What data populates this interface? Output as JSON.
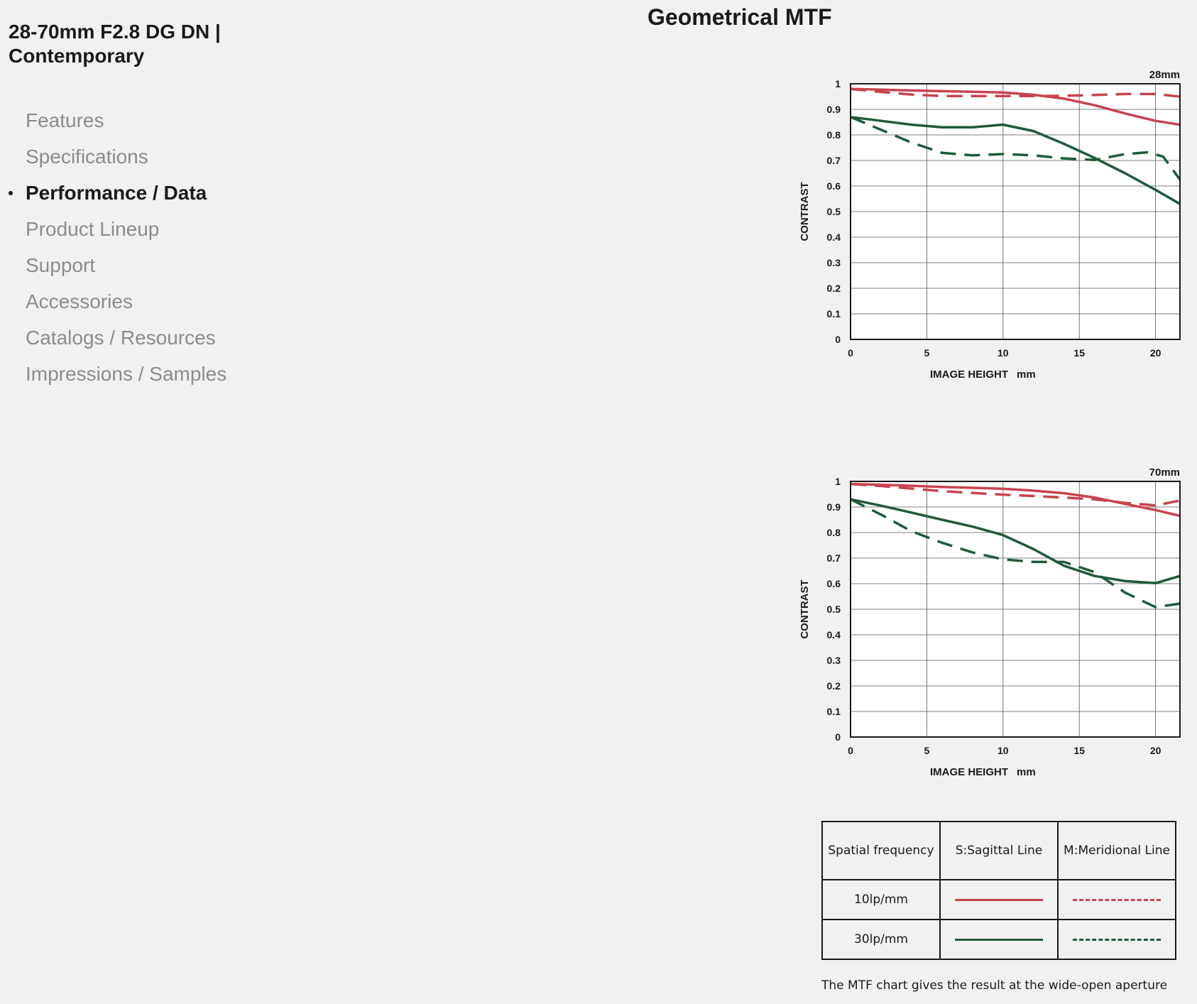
{
  "product": {
    "title_line1": "28-70mm F2.8 DG DN |",
    "title_line2": "Contemporary"
  },
  "nav": {
    "items": [
      {
        "label": "Features",
        "active": false
      },
      {
        "label": "Specifications",
        "active": false
      },
      {
        "label": "Performance / Data",
        "active": true
      },
      {
        "label": "Product Lineup",
        "active": false
      },
      {
        "label": "Support",
        "active": false
      },
      {
        "label": "Accessories",
        "active": false
      },
      {
        "label": "Catalogs / Resources",
        "active": false
      },
      {
        "label": "Impressions / Samples",
        "active": false
      }
    ]
  },
  "section": {
    "title": "Geometrical MTF"
  },
  "colors": {
    "lp10": "#c8434e",
    "lp30": "#1f5a3a",
    "background": "#f1f1f1",
    "text_active": "#1a1a1a",
    "text_muted": "#8c8c8c"
  },
  "chart_data": [
    {
      "type": "line",
      "title": "28mm",
      "xlabel": "IMAGE HEIGHT",
      "xunit": "mm",
      "ylabel": "CONTRAST",
      "xlim": [
        0,
        21.6
      ],
      "ylim": [
        0,
        1
      ],
      "xticks": [
        "0",
        "5",
        "10",
        "15",
        "20"
      ],
      "yticks": [
        "0",
        "0.1",
        "0.2",
        "0.3",
        "0.4",
        "0.5",
        "0.6",
        "0.7",
        "0.8",
        "0.9",
        "1"
      ],
      "grid": true,
      "series": [
        {
          "name": "S 10lp/mm",
          "freq": "10lp/mm",
          "style": "solid",
          "x": [
            0,
            2,
            4,
            6,
            8,
            10,
            12,
            14,
            16,
            18,
            20,
            21.6
          ],
          "y": [
            0.98,
            0.977,
            0.974,
            0.971,
            0.969,
            0.966,
            0.957,
            0.942,
            0.916,
            0.884,
            0.855,
            0.84
          ]
        },
        {
          "name": "M 10lp/mm",
          "freq": "10lp/mm",
          "style": "dash",
          "x": [
            0,
            2,
            4,
            6,
            8,
            10,
            12,
            14,
            16,
            18,
            20,
            21.6
          ],
          "y": [
            0.98,
            0.968,
            0.958,
            0.952,
            0.952,
            0.952,
            0.952,
            0.953,
            0.956,
            0.96,
            0.96,
            0.95
          ]
        },
        {
          "name": "S 30lp/mm",
          "freq": "30lp/mm",
          "style": "solid",
          "x": [
            0,
            2,
            4,
            6,
            8,
            10,
            12,
            14,
            16,
            18,
            20,
            21.6
          ],
          "y": [
            0.87,
            0.855,
            0.84,
            0.83,
            0.83,
            0.84,
            0.815,
            0.765,
            0.71,
            0.65,
            0.585,
            0.53
          ]
        },
        {
          "name": "M 30lp/mm",
          "freq": "30lp/mm",
          "style": "dash",
          "x": [
            0,
            2,
            4,
            6,
            8,
            10,
            12,
            14,
            16,
            18,
            19.5,
            20.5,
            21.6
          ],
          "y": [
            0.87,
            0.82,
            0.77,
            0.73,
            0.72,
            0.725,
            0.72,
            0.708,
            0.702,
            0.725,
            0.732,
            0.715,
            0.625
          ]
        }
      ]
    },
    {
      "type": "line",
      "title": "70mm",
      "xlabel": "IMAGE HEIGHT",
      "xunit": "mm",
      "ylabel": "CONTRAST",
      "xlim": [
        0,
        21.6
      ],
      "ylim": [
        0,
        1
      ],
      "xticks": [
        "0",
        "5",
        "10",
        "15",
        "20"
      ],
      "yticks": [
        "0",
        "0.1",
        "0.2",
        "0.3",
        "0.4",
        "0.5",
        "0.6",
        "0.7",
        "0.8",
        "0.9",
        "1"
      ],
      "grid": true,
      "series": [
        {
          "name": "S 10lp/mm",
          "freq": "10lp/mm",
          "style": "solid",
          "x": [
            0,
            2,
            4,
            6,
            8,
            10,
            12,
            14,
            16,
            18,
            20,
            21.6
          ],
          "y": [
            0.99,
            0.987,
            0.983,
            0.978,
            0.975,
            0.971,
            0.964,
            0.954,
            0.937,
            0.912,
            0.888,
            0.865
          ]
        },
        {
          "name": "M 10lp/mm",
          "freq": "10lp/mm",
          "style": "dash",
          "x": [
            0,
            2,
            4,
            6,
            8,
            10,
            12,
            14,
            16,
            18,
            20,
            21.6
          ],
          "y": [
            0.99,
            0.982,
            0.972,
            0.962,
            0.955,
            0.948,
            0.943,
            0.937,
            0.93,
            0.916,
            0.906,
            0.925
          ]
        },
        {
          "name": "S 30lp/mm",
          "freq": "30lp/mm",
          "style": "solid",
          "x": [
            0,
            2,
            4,
            6,
            8,
            10,
            12,
            14,
            16,
            18,
            20,
            21.6
          ],
          "y": [
            0.93,
            0.905,
            0.878,
            0.85,
            0.823,
            0.79,
            0.735,
            0.67,
            0.63,
            0.61,
            0.602,
            0.63
          ]
        },
        {
          "name": "M 30lp/mm",
          "freq": "30lp/mm",
          "style": "dash",
          "x": [
            0,
            2,
            4,
            6,
            8,
            10,
            12,
            14,
            16,
            18,
            20,
            21.6
          ],
          "y": [
            0.93,
            0.87,
            0.805,
            0.76,
            0.722,
            0.695,
            0.685,
            0.685,
            0.645,
            0.565,
            0.508,
            0.522
          ]
        }
      ]
    }
  ],
  "legend": {
    "header": {
      "col1": "Spatial frequency",
      "col2": "S:Sagittal Line",
      "col3": "M:Meridional Line"
    },
    "rows": [
      {
        "label": "10lp/mm",
        "freq": "10lp/mm"
      },
      {
        "label": "30lp/mm",
        "freq": "30lp/mm"
      }
    ]
  },
  "note": "The MTF chart gives the result at the wide-open aperture"
}
